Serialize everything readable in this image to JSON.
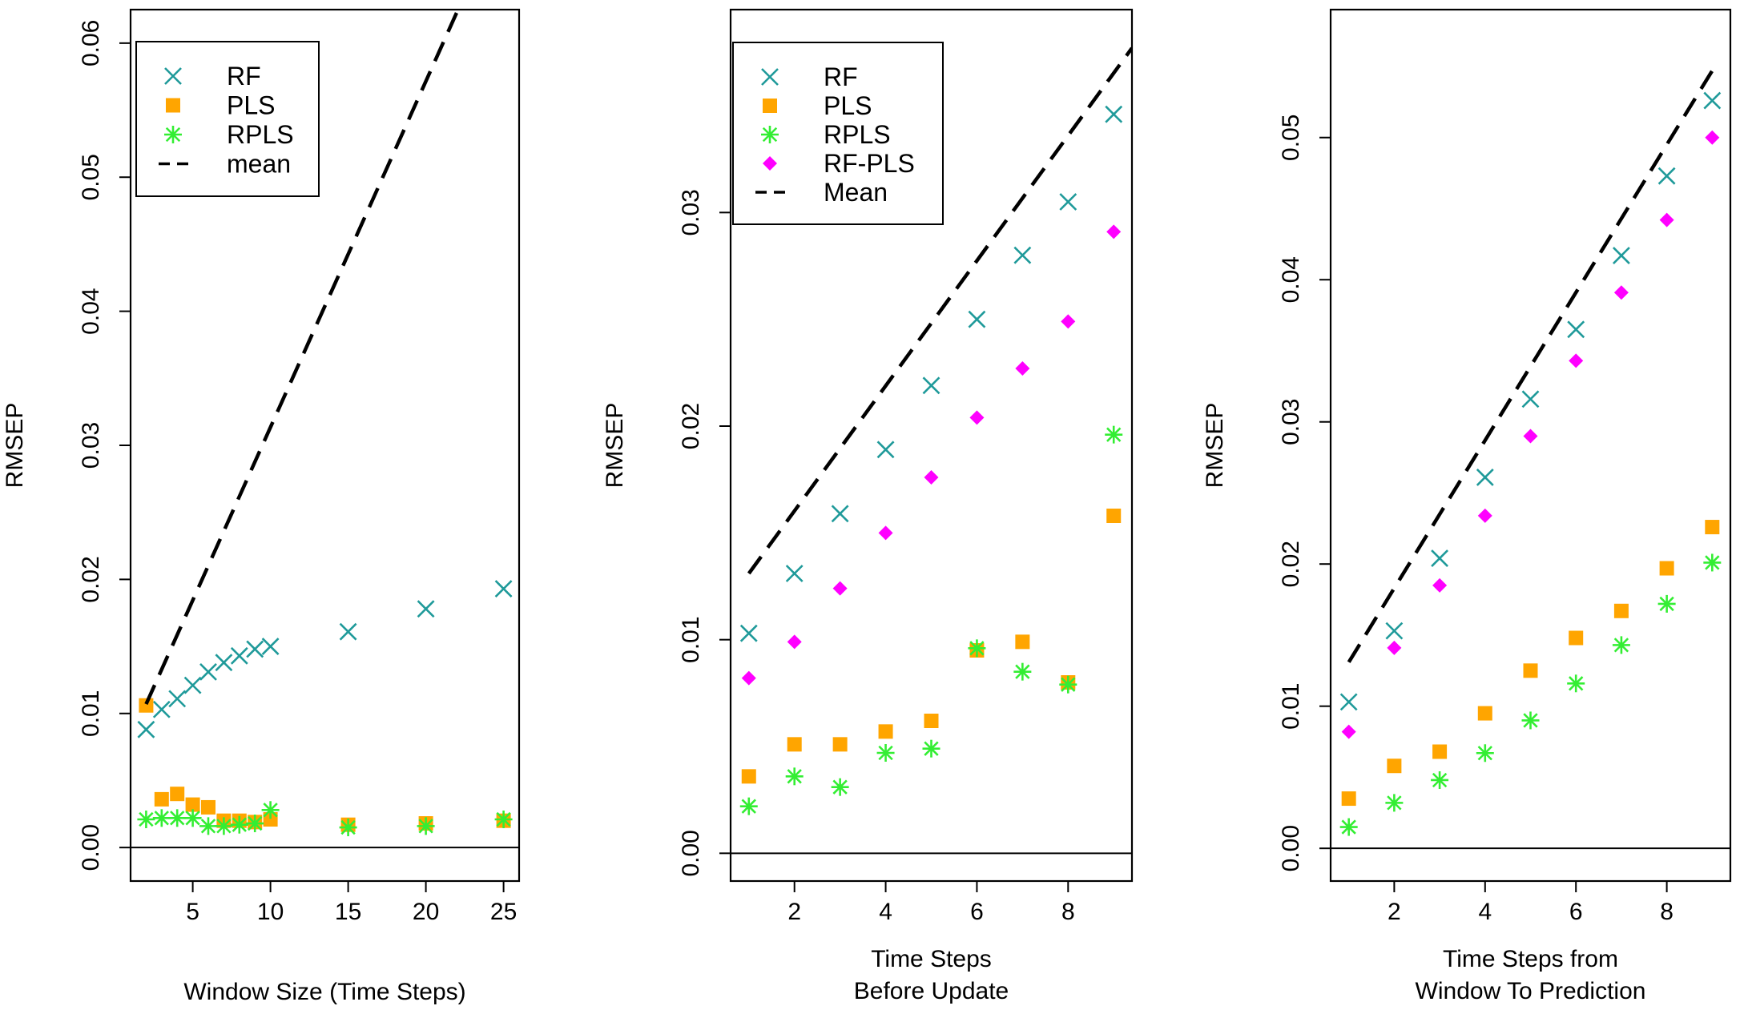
{
  "colors": {
    "rf": "#1f9a9a",
    "pls": "#ffa500",
    "rpls": "#33ee33",
    "rfpls": "#ff00ff",
    "mean": "#000000"
  },
  "chart_data": [
    {
      "type": "scatter",
      "ylabel": "RMSEP",
      "xlabel_lines": [
        "Window Size (Time Steps)"
      ],
      "xlim": [
        1,
        26
      ],
      "ylim": [
        -0.0025,
        0.0625
      ],
      "xticks": [
        5,
        10,
        15,
        20,
        25
      ],
      "xtick_labels": [
        "5",
        "10",
        "15",
        "20",
        "25"
      ],
      "yticks": [
        0,
        0.01,
        0.02,
        0.03,
        0.04,
        0.05,
        0.06
      ],
      "ytick_labels": [
        "0.00",
        "0.01",
        "0.02",
        "0.03",
        "0.04",
        "0.05",
        "0.06"
      ],
      "hline": 0,
      "legend": {
        "position": "top-left",
        "entries": [
          {
            "label": "RF",
            "series": "rf",
            "marker": "x"
          },
          {
            "label": "PLS",
            "series": "pls",
            "marker": "square"
          },
          {
            "label": "RPLS",
            "series": "rpls",
            "marker": "star"
          },
          {
            "label": "mean",
            "series": "mean",
            "marker": "dashed-line"
          }
        ]
      },
      "series": [
        {
          "key": "rf",
          "name": "RF",
          "marker": "x",
          "x": [
            2,
            3,
            4,
            5,
            6,
            7,
            8,
            9,
            10,
            15,
            20,
            25
          ],
          "y": [
            0.0088,
            0.0103,
            0.0111,
            0.0121,
            0.0131,
            0.0138,
            0.0143,
            0.0148,
            0.015,
            0.0161,
            0.0178,
            0.0193
          ]
        },
        {
          "key": "pls",
          "name": "PLS",
          "marker": "square",
          "x": [
            2,
            3,
            4,
            5,
            6,
            7,
            8,
            9,
            10,
            15,
            20,
            25
          ],
          "y": [
            0.0106,
            0.0036,
            0.004,
            0.0032,
            0.003,
            0.002,
            0.002,
            0.0019,
            0.0021,
            0.0017,
            0.0018,
            0.002
          ]
        },
        {
          "key": "rpls",
          "name": "RPLS",
          "marker": "star",
          "x": [
            2,
            3,
            4,
            5,
            6,
            7,
            8,
            9,
            10,
            15,
            20,
            25
          ],
          "y": [
            0.0021,
            0.0022,
            0.0022,
            0.0022,
            0.0016,
            0.0016,
            0.0017,
            0.0018,
            0.0028,
            0.0015,
            0.0016,
            0.0021
          ]
        },
        {
          "key": "mean",
          "name": "mean",
          "marker": "dashed-line",
          "x": [
            2,
            23
          ],
          "y": [
            0.0107,
            0.0649
          ]
        }
      ]
    },
    {
      "type": "scatter",
      "ylabel": "RMSEP",
      "xlabel_lines": [
        "Time Steps",
        "Before Update"
      ],
      "xlim": [
        0.6,
        9.4
      ],
      "ylim": [
        -0.0013,
        0.0395
      ],
      "xticks": [
        2,
        4,
        6,
        8
      ],
      "xtick_labels": [
        "2",
        "4",
        "6",
        "8"
      ],
      "yticks": [
        0,
        0.01,
        0.02,
        0.03
      ],
      "ytick_labels": [
        "0.00",
        "0.01",
        "0.02",
        "0.03"
      ],
      "hline": 0,
      "legend": {
        "position": "top-left",
        "entries": [
          {
            "label": "RF",
            "series": "rf",
            "marker": "x"
          },
          {
            "label": "PLS",
            "series": "pls",
            "marker": "square"
          },
          {
            "label": "RPLS",
            "series": "rpls",
            "marker": "star"
          },
          {
            "label": "RF-PLS",
            "series": "rfpls",
            "marker": "diamond"
          },
          {
            "label": "Mean",
            "series": "mean",
            "marker": "dashed-line"
          }
        ]
      },
      "series": [
        {
          "key": "rf",
          "name": "RF",
          "marker": "x",
          "x": [
            1,
            2,
            3,
            4,
            5,
            6,
            7,
            8,
            9
          ],
          "y": [
            0.0103,
            0.0131,
            0.0159,
            0.0189,
            0.0219,
            0.025,
            0.028,
            0.0305,
            0.0346
          ]
        },
        {
          "key": "pls",
          "name": "PLS",
          "marker": "square",
          "x": [
            1,
            2,
            3,
            4,
            5,
            6,
            7,
            8,
            9
          ],
          "y": [
            0.0036,
            0.0051,
            0.0051,
            0.0057,
            0.0062,
            0.0095,
            0.0099,
            0.008,
            0.0158
          ]
        },
        {
          "key": "rpls",
          "name": "RPLS",
          "marker": "star",
          "x": [
            1,
            2,
            3,
            4,
            5,
            6,
            7,
            8,
            9
          ],
          "y": [
            0.0022,
            0.0036,
            0.0031,
            0.0047,
            0.0049,
            0.0096,
            0.0085,
            0.0079,
            0.0196
          ]
        },
        {
          "key": "rfpls",
          "name": "RF-PLS",
          "marker": "diamond",
          "x": [
            1,
            2,
            3,
            4,
            5,
            6,
            7,
            8,
            9
          ],
          "y": [
            0.0082,
            0.0099,
            0.0124,
            0.015,
            0.0176,
            0.0204,
            0.0227,
            0.0249,
            0.0291
          ]
        },
        {
          "key": "mean",
          "name": "Mean",
          "marker": "dashed-line",
          "x": [
            1,
            9.4
          ],
          "y": [
            0.0131,
            0.0377
          ]
        }
      ]
    },
    {
      "type": "scatter",
      "ylabel": "RMSEP",
      "xlabel_lines": [
        "Time Steps from",
        "Window To Prediction"
      ],
      "xlim": [
        0.6,
        9.4
      ],
      "ylim": [
        -0.0023,
        0.059
      ],
      "xticks": [
        2,
        4,
        6,
        8
      ],
      "xtick_labels": [
        "2",
        "4",
        "6",
        "8"
      ],
      "yticks": [
        0,
        0.01,
        0.02,
        0.03,
        0.04,
        0.05
      ],
      "ytick_labels": [
        "0.00",
        "0.01",
        "0.02",
        "0.03",
        "0.04",
        "0.05"
      ],
      "hline": 0,
      "legend": null,
      "series": [
        {
          "key": "rf",
          "name": "RF",
          "marker": "x",
          "x": [
            1,
            2,
            3,
            4,
            5,
            6,
            7,
            8,
            9
          ],
          "y": [
            0.0103,
            0.0153,
            0.0204,
            0.0261,
            0.0316,
            0.0365,
            0.0417,
            0.0473,
            0.0526
          ]
        },
        {
          "key": "pls",
          "name": "PLS",
          "marker": "square",
          "x": [
            1,
            2,
            3,
            4,
            5,
            6,
            7,
            8,
            9
          ],
          "y": [
            0.0035,
            0.0058,
            0.0068,
            0.0095,
            0.0125,
            0.0148,
            0.0167,
            0.0197,
            0.0226
          ]
        },
        {
          "key": "rpls",
          "name": "RPLS",
          "marker": "star",
          "x": [
            1,
            2,
            3,
            4,
            5,
            6,
            7,
            8,
            9
          ],
          "y": [
            0.0015,
            0.0032,
            0.0048,
            0.0067,
            0.009,
            0.0116,
            0.0143,
            0.0172,
            0.0201
          ]
        },
        {
          "key": "rfpls",
          "name": "RF-PLS",
          "marker": "diamond",
          "x": [
            1,
            2,
            3,
            4,
            5,
            6,
            7,
            8,
            9
          ],
          "y": [
            0.0082,
            0.0141,
            0.0185,
            0.0234,
            0.029,
            0.0343,
            0.0391,
            0.0442,
            0.05
          ]
        },
        {
          "key": "mean",
          "name": "Mean",
          "marker": "dashed-line",
          "x": [
            1,
            9
          ],
          "y": [
            0.0131,
            0.0547
          ]
        }
      ]
    }
  ]
}
